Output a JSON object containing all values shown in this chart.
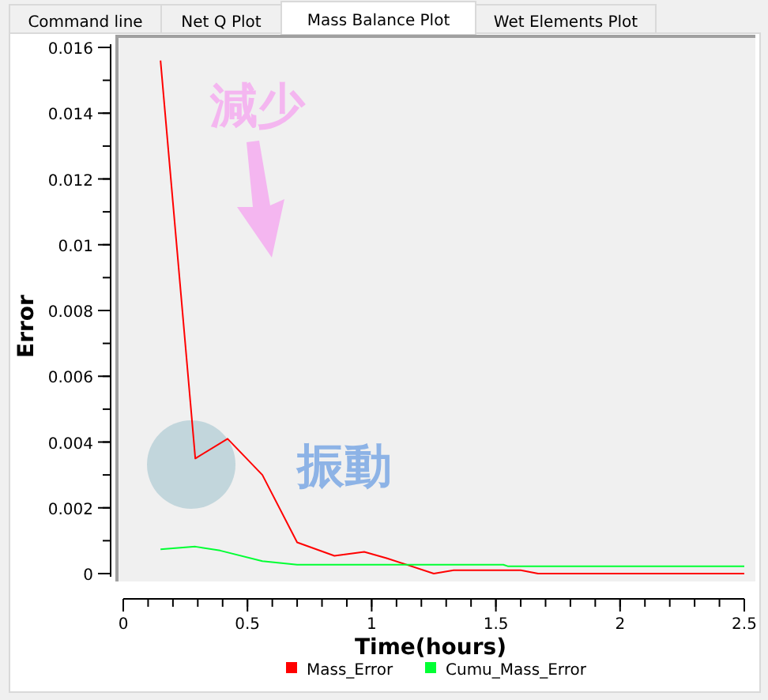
{
  "chart_data": {
    "type": "line",
    "xlabel": "Time(hours)",
    "ylabel": "Error",
    "xlim": [
      0,
      2.5
    ],
    "xticks": [
      0,
      0.5,
      1,
      1.5,
      2,
      2.5
    ],
    "ylim": [
      0,
      0.016
    ],
    "yticks": [
      0,
      0.002,
      0.004,
      0.006,
      0.008,
      0.01,
      0.012,
      0.014,
      0.016
    ],
    "grid": false,
    "legend": "bottom",
    "marker": "none",
    "line_style": "solid",
    "annotations": [
      "Command line",
      "Net Q Plot",
      "Mass Balance Plot",
      "Wet Elements Plot",
      "減少",
      {
        "text": "振動",
        "x": 0.35,
        "y": 0.0037
      }
    ],
    "series": [
      {
        "name": "Mass_Error",
        "color": "#ff0000",
        "x": [
          0.15,
          0.29,
          0.42,
          0.56,
          0.7,
          0.85,
          0.97,
          1.06,
          1.25,
          1.33,
          1.6,
          1.67,
          2.5
        ],
        "values": [
          0.0156,
          0.0035,
          0.0041,
          0.003,
          0.00095,
          0.00054,
          0.00066,
          0.00047,
          0,
          0.0001,
          0.0001,
          0,
          0
        ]
      },
      {
        "name": "Cumu_Mass_Error",
        "color": "#00ff33",
        "x": [
          0.15,
          0.29,
          0.39,
          0.56,
          0.7,
          1.53,
          1.55,
          2.5
        ],
        "values": [
          0.00074,
          0.00082,
          0.0007,
          0.00038,
          0.00027,
          0.00027,
          0.00022,
          0.00022
        ]
      }
    ]
  }
}
